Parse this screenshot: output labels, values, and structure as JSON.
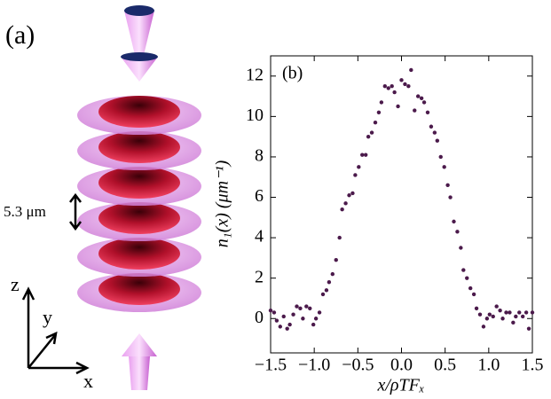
{
  "illustration": {
    "label": "(a)",
    "spacing": "5.3 μm",
    "axis_z": "z",
    "axis_y": "y",
    "axis_x": "x"
  },
  "chart_data": {
    "type": "scatter",
    "panel_label": "(b)",
    "x_label": "x/ρTFₓ",
    "y_label": "n₁(x) (μm⁻¹)",
    "color": "#4b1a4b",
    "x": [
      -1.5,
      -1.46,
      -1.43,
      -1.39,
      -1.35,
      -1.31,
      -1.28,
      -1.24,
      -1.2,
      -1.16,
      -1.13,
      -1.09,
      -1.05,
      -1.01,
      -0.98,
      -0.94,
      -0.9,
      -0.86,
      -0.83,
      -0.79,
      -0.75,
      -0.71,
      -0.68,
      -0.64,
      -0.6,
      -0.56,
      -0.53,
      -0.49,
      -0.45,
      -0.41,
      -0.38,
      -0.34,
      -0.3,
      -0.26,
      -0.23,
      -0.19,
      -0.15,
      -0.11,
      -0.08,
      -0.04,
      0.0,
      0.04,
      0.08,
      0.11,
      0.15,
      0.19,
      0.23,
      0.26,
      0.3,
      0.34,
      0.38,
      0.41,
      0.45,
      0.49,
      0.53,
      0.56,
      0.6,
      0.64,
      0.68,
      0.71,
      0.75,
      0.79,
      0.83,
      0.86,
      0.9,
      0.94,
      0.98,
      1.01,
      1.05,
      1.09,
      1.13,
      1.16,
      1.2,
      1.24,
      1.28,
      1.31,
      1.35,
      1.39,
      1.43,
      1.46,
      1.5
    ],
    "values": [
      0.4,
      0.3,
      -0.1,
      -0.4,
      0.1,
      -0.5,
      -0.3,
      0.2,
      0.6,
      0.5,
      0.0,
      0.6,
      0.5,
      -0.3,
      0.0,
      0.3,
      1.2,
      1.4,
      1.8,
      2.2,
      2.9,
      4.0,
      5.4,
      5.7,
      6.1,
      6.2,
      7.1,
      7.5,
      8.1,
      8.1,
      9.0,
      9.2,
      9.7,
      10.2,
      10.7,
      11.5,
      11.4,
      11.5,
      11.2,
      10.5,
      11.8,
      11.6,
      11.5,
      12.3,
      10.3,
      11.0,
      10.9,
      10.7,
      10.2,
      9.5,
      9.2,
      8.8,
      8.0,
      7.5,
      6.6,
      6.0,
      4.8,
      4.3,
      3.5,
      2.4,
      2.0,
      1.5,
      1.2,
      0.5,
      0.2,
      -0.4,
      0.0,
      0.2,
      0.1,
      0.6,
      0.4,
      0.0,
      0.3,
      0.3,
      -0.2,
      0.1,
      0.3,
      0.1,
      0.3,
      -0.5,
      0.3
    ],
    "xlim": [
      -1.5,
      1.5
    ],
    "ylim": [
      -1.7,
      13
    ],
    "xticks": [
      {
        "value": -1.5,
        "label": "−1.5"
      },
      {
        "value": -1.0,
        "label": "−1.0"
      },
      {
        "value": -0.5,
        "label": "−0.5"
      },
      {
        "value": 0,
        "label": "0.0"
      },
      0.5,
      {
        "value": 1.0,
        "label": "1.0"
      },
      1.5
    ],
    "yticks": [
      0,
      2,
      4,
      6,
      8,
      10,
      12
    ]
  }
}
